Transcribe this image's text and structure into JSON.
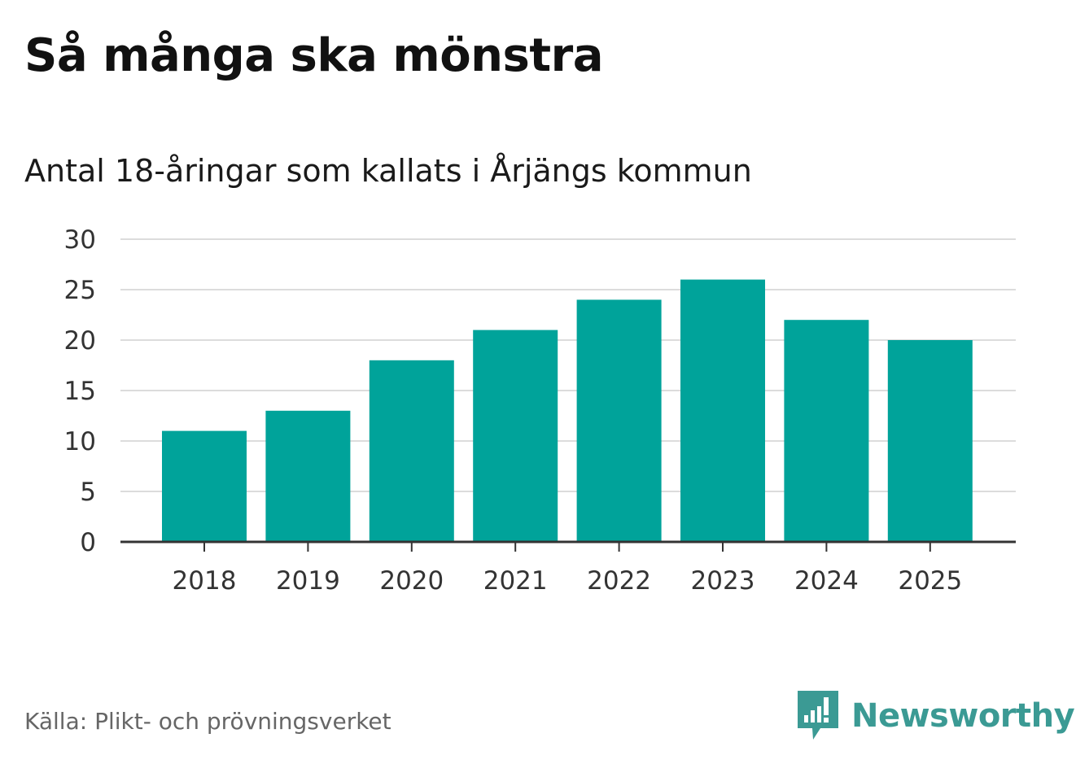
{
  "chart_data": {
    "type": "bar",
    "title": "Så många ska mönstra",
    "subtitle": "Antal 18-åringar som kallats i Årjängs kommun",
    "categories": [
      "2018",
      "2019",
      "2020",
      "2021",
      "2022",
      "2023",
      "2024",
      "2025"
    ],
    "values": [
      11,
      13,
      18,
      21,
      24,
      26,
      22,
      20
    ],
    "ylim": [
      0,
      30
    ],
    "yticks": [
      0,
      5,
      10,
      15,
      20,
      25,
      30
    ],
    "xlabel": "",
    "ylabel": "",
    "grid": true,
    "bar_color": "#00a39a"
  },
  "source": "Källa: Plikt- och prövningsverket",
  "brand": {
    "name": "Newsworthy",
    "icon": "newsworthy-logo-icon",
    "color": "#3b9a94"
  }
}
